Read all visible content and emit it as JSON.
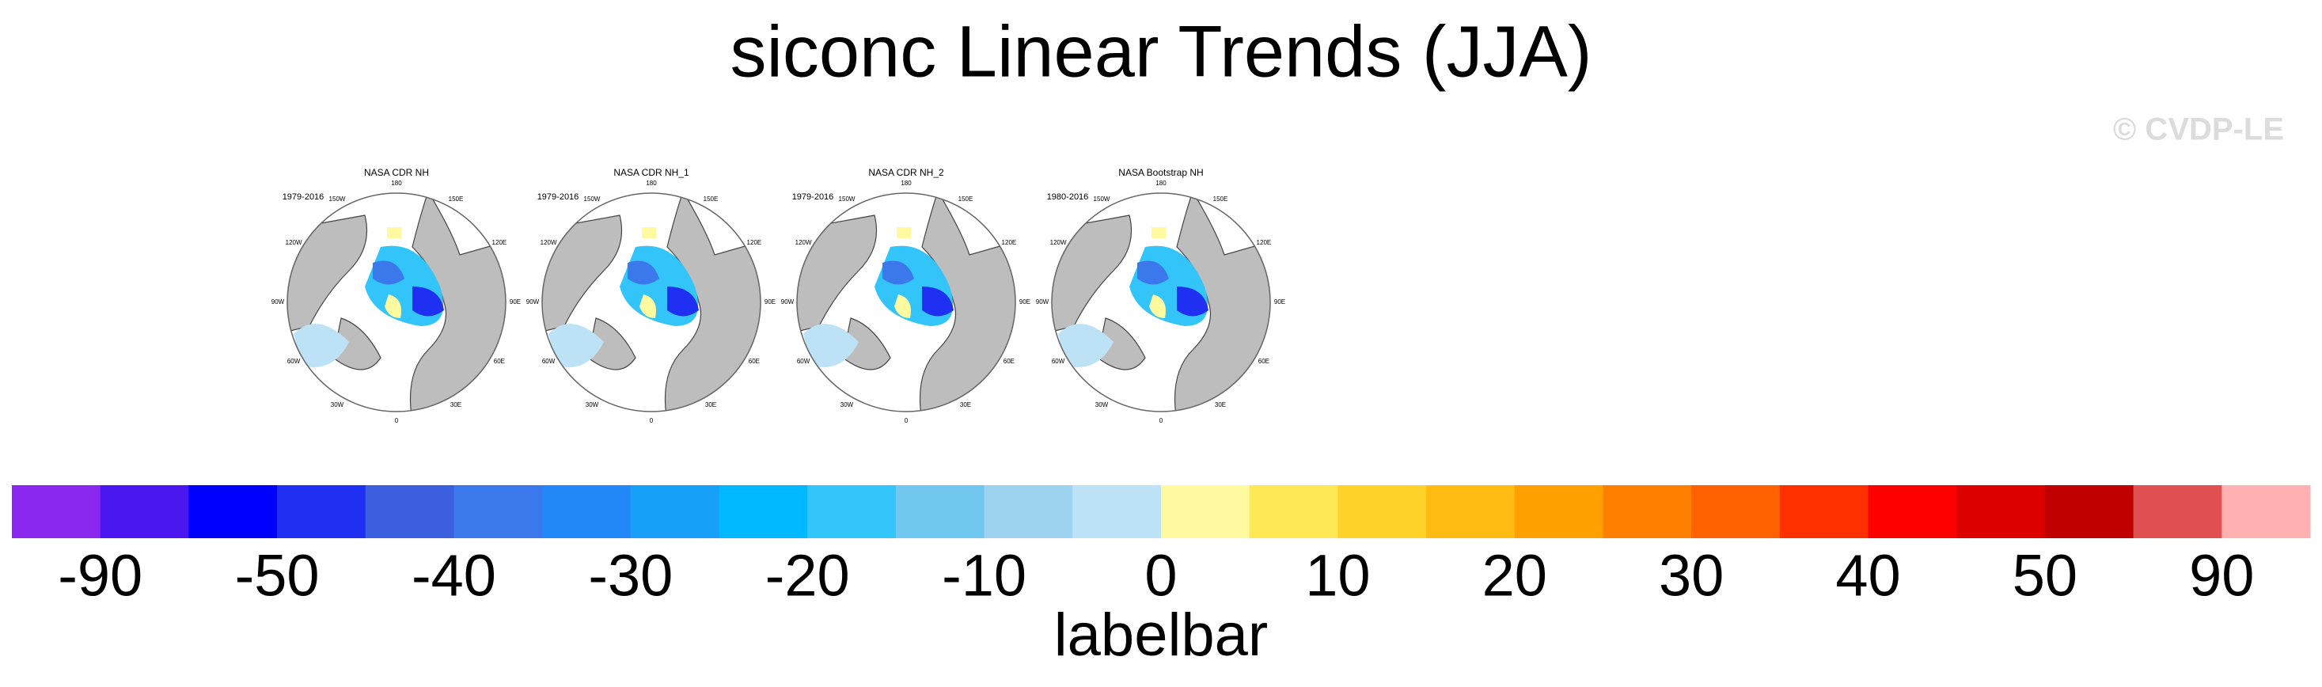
{
  "chart_data": {
    "type": "colorbar",
    "title": "siconc Linear Trends (JJA)",
    "watermark": "© CVDP-LE",
    "panels": [
      {
        "title": "NASA CDR NH",
        "period": "1979-2016"
      },
      {
        "title": "NASA CDR NH_1",
        "period": "1979-2016"
      },
      {
        "title": "NASA CDR NH_2",
        "period": "1979-2016"
      },
      {
        "title": "NASA Bootstrap NH",
        "period": "1980-2016"
      }
    ],
    "longitude_labels": [
      "180",
      "150E",
      "120E",
      "90E",
      "60E",
      "30E",
      "0",
      "30W",
      "60W",
      "90W",
      "120W",
      "150W"
    ],
    "colors": [
      "#8a28f0",
      "#4b17f0",
      "#0000ff",
      "#1f30f2",
      "#3c5fe0",
      "#3a78ec",
      "#2288f8",
      "#18a0f8",
      "#00b8ff",
      "#33c5fa",
      "#70c8f0",
      "#9dd3f0",
      "#bde2f5",
      "#fff9a0",
      "#ffe855",
      "#ffd22a",
      "#ffbb11",
      "#ffa000",
      "#ff8000",
      "#ff6000",
      "#ff3000",
      "#ff0000",
      "#dd0000",
      "#c00000",
      "#e05050",
      "#ffb0b0"
    ],
    "ticks": [
      -90,
      -50,
      -40,
      -30,
      -20,
      -10,
      0,
      10,
      20,
      30,
      40,
      50,
      90
    ],
    "xlabel": "labelbar"
  }
}
